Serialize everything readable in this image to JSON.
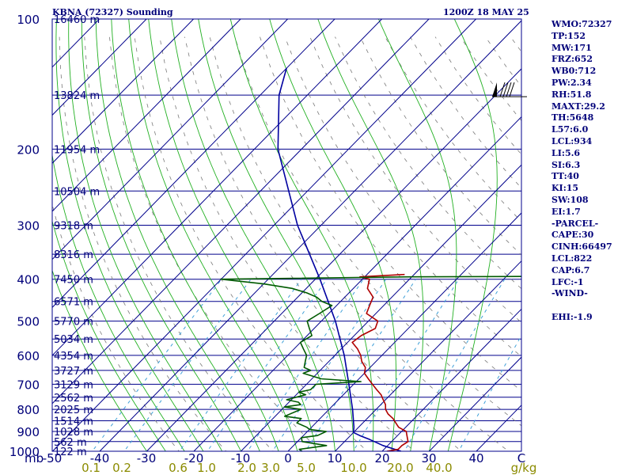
{
  "header": {
    "station": "KBNA (72327) Sounding",
    "time": "1200Z 18 MAY 25"
  },
  "indices": [
    "WMO:72327",
    "TP:152",
    "MW:171",
    "FRZ:652",
    "WB0:712",
    "PW:2.34",
    "RH:51.8",
    "MAXT:29.2",
    "TH:5648",
    "L57:6.0",
    "LCL:934",
    "LI:5.6",
    "SI:6.3",
    "TT:40",
    "KI:15",
    "SW:108",
    "EI:1.7",
    "-PARCEL-",
    "CAPE:30",
    "CINH:66497",
    "LCL:822",
    "CAP:6.7",
    "LFC:-1",
    "-WIND-",
    "",
    "EHI:-1.9"
  ],
  "colors": {
    "isobar": "#00008b",
    "isotherm": "#00008b",
    "dry_adiabat": "#7a7a7a",
    "moist_adiabat": "#22b022",
    "mixing_ratio": "#3fa0d8",
    "temperature": "#b00000",
    "dewpoint": "#005a00",
    "parcel": "#0000a0",
    "label": "#00007a",
    "mixing_label": "#8b8b00"
  },
  "chart_data": {
    "type": "skew-t",
    "title": "KBNA (72327) Sounding",
    "subtitle": "1200Z 18 MAY 25",
    "ylabel": "mb",
    "pressure_ticks": [
      100,
      200,
      300,
      400,
      500,
      600,
      700,
      800,
      900,
      1000
    ],
    "temperature_ticks": [
      "-50",
      "-40",
      "-30",
      "-20",
      "-10",
      "0",
      "10",
      "20",
      "30",
      "40",
      "C"
    ],
    "mixing_ratio_ticks": [
      "0.1",
      "0.2",
      "0.6",
      "1.0",
      "2.0",
      "3.0",
      "5.0",
      "10.0",
      "20.0",
      "40.0",
      "g/kg"
    ],
    "height_labels": [
      {
        "p": 100,
        "label": "16460 m"
      },
      {
        "p": 150,
        "label": "13824 m"
      },
      {
        "p": 200,
        "label": "11954 m"
      },
      {
        "p": 250,
        "label": "10504 m"
      },
      {
        "p": 300,
        "label": "9318 m"
      },
      {
        "p": 350,
        "label": "8316 m"
      },
      {
        "p": 400,
        "label": "7450 m"
      },
      {
        "p": 450,
        "label": "6571 m"
      },
      {
        "p": 500,
        "label": "5770 m"
      },
      {
        "p": 550,
        "label": "5034 m"
      },
      {
        "p": 600,
        "label": "4354 m"
      },
      {
        "p": 650,
        "label": "3727 m"
      },
      {
        "p": 700,
        "label": "3129 m"
      },
      {
        "p": 750,
        "label": "2562 m"
      },
      {
        "p": 800,
        "label": "2025 m"
      },
      {
        "p": 850,
        "label": "1514 m"
      },
      {
        "p": 900,
        "label": "1028 m"
      },
      {
        "p": 950,
        "label": "562 m"
      },
      {
        "p": 1000,
        "label": "122 m"
      }
    ],
    "temperature_profile": [
      [
        1000,
        21
      ],
      [
        990,
        23
      ],
      [
        970,
        23
      ],
      [
        950,
        23.5
      ],
      [
        920,
        22
      ],
      [
        900,
        21
      ],
      [
        880,
        18.5
      ],
      [
        860,
        17
      ],
      [
        840,
        15.5
      ],
      [
        820,
        13.5
      ],
      [
        800,
        12
      ],
      [
        780,
        11
      ],
      [
        760,
        9.5
      ],
      [
        740,
        8
      ],
      [
        720,
        6
      ],
      [
        700,
        4
      ],
      [
        680,
        2
      ],
      [
        660,
        0
      ],
      [
        640,
        -1
      ],
      [
        620,
        -3
      ],
      [
        600,
        -4.5
      ],
      [
        580,
        -6.5
      ],
      [
        560,
        -9
      ],
      [
        540,
        -8.5
      ],
      [
        520,
        -7
      ],
      [
        500,
        -8
      ],
      [
        480,
        -12
      ],
      [
        460,
        -13
      ],
      [
        440,
        -14
      ],
      [
        420,
        -17
      ],
      [
        400,
        -18.5
      ],
      [
        395,
        -21
      ],
      [
        390,
        -12
      ]
    ],
    "dewpoint_profile": [
      [
        1000,
        3
      ],
      [
        990,
        2
      ],
      [
        970,
        7
      ],
      [
        950,
        1
      ],
      [
        930,
        0
      ],
      [
        920,
        3
      ],
      [
        900,
        4
      ],
      [
        890,
        0
      ],
      [
        880,
        -1
      ],
      [
        860,
        -4
      ],
      [
        840,
        -4
      ],
      [
        830,
        -8
      ],
      [
        800,
        -6
      ],
      [
        790,
        -10
      ],
      [
        780,
        -7
      ],
      [
        770,
        -8
      ],
      [
        760,
        -11
      ],
      [
        740,
        -8
      ],
      [
        730,
        -10
      ],
      [
        720,
        -8
      ],
      [
        700,
        -8
      ],
      [
        690,
        1
      ],
      [
        680,
        -8
      ],
      [
        660,
        -13
      ],
      [
        650,
        -12
      ],
      [
        640,
        -14
      ],
      [
        620,
        -15
      ],
      [
        600,
        -16
      ],
      [
        580,
        -18
      ],
      [
        560,
        -20
      ],
      [
        540,
        -19
      ],
      [
        520,
        -21
      ],
      [
        500,
        -23
      ],
      [
        480,
        -22
      ],
      [
        460,
        -21
      ],
      [
        450,
        -24
      ],
      [
        440,
        -26
      ],
      [
        430,
        -29
      ],
      [
        420,
        -33
      ],
      [
        410,
        -40
      ],
      [
        400,
        -50
      ],
      [
        395,
        -10
      ],
      [
        393,
        50
      ]
    ],
    "parcel_profile": [
      [
        1000,
        24
      ],
      [
        970,
        19
      ],
      [
        940,
        15
      ],
      [
        920,
        12
      ],
      [
        905,
        10
      ],
      [
        880,
        9
      ],
      [
        800,
        5
      ],
      [
        700,
        -1
      ],
      [
        600,
        -8
      ],
      [
        500,
        -17
      ],
      [
        400,
        -29
      ],
      [
        300,
        -45
      ],
      [
        200,
        -65
      ],
      [
        150,
        -76
      ],
      [
        130,
        -80
      ]
    ]
  }
}
